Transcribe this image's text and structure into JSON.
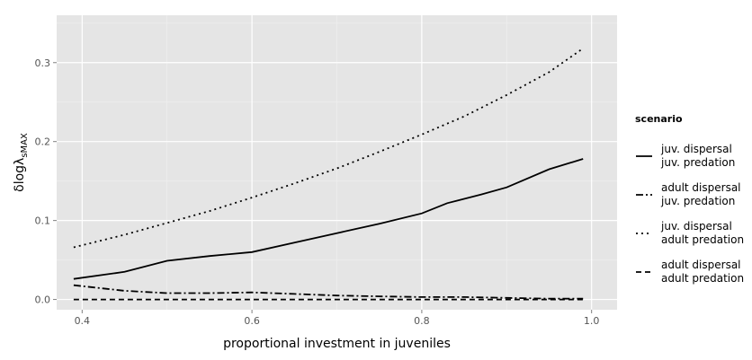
{
  "chart_data": {
    "type": "line",
    "xlabel": "proportional investment in juveniles",
    "ylabel_main": "δlogλ",
    "ylabel_sub": "sMAX",
    "xlim": [
      0.37,
      1.03
    ],
    "ylim": [
      -0.013,
      0.36
    ],
    "x_ticks": [
      0.4,
      0.6,
      0.8,
      1.0
    ],
    "x_tick_labels": [
      "0.4",
      "0.6",
      "0.8",
      "1.0"
    ],
    "y_ticks": [
      0.0,
      0.1,
      0.2,
      0.3
    ],
    "y_tick_labels": [
      "0.0",
      "0.1",
      "0.2",
      "0.3"
    ],
    "grid": true,
    "legend": {
      "title": "scenario",
      "placement": "right"
    },
    "series": [
      {
        "name_line1": "juv. dispersal",
        "name_line2": "juv. predation",
        "dash": "solid",
        "x": [
          0.39,
          0.45,
          0.5,
          0.55,
          0.6,
          0.65,
          0.7,
          0.75,
          0.8,
          0.83,
          0.87,
          0.9,
          0.95,
          0.99
        ],
        "y": [
          0.026,
          0.035,
          0.049,
          0.055,
          0.06,
          0.072,
          0.084,
          0.096,
          0.109,
          0.122,
          0.133,
          0.142,
          0.165,
          0.178
        ]
      },
      {
        "name_line1": "adult dispersal",
        "name_line2": "juv. predation",
        "dash": "dashdot",
        "x": [
          0.39,
          0.45,
          0.5,
          0.55,
          0.6,
          0.65,
          0.7,
          0.75,
          0.8,
          0.85,
          0.9,
          0.95,
          0.99
        ],
        "y": [
          0.018,
          0.011,
          0.008,
          0.008,
          0.009,
          0.007,
          0.005,
          0.004,
          0.003,
          0.003,
          0.002,
          0.001,
          0.001
        ]
      },
      {
        "name_line1": "juv. dispersal",
        "name_line2": "adult predation",
        "dash": "dotted",
        "x": [
          0.39,
          0.45,
          0.5,
          0.55,
          0.6,
          0.65,
          0.7,
          0.75,
          0.8,
          0.85,
          0.9,
          0.95,
          0.99
        ],
        "y": [
          0.066,
          0.082,
          0.097,
          0.112,
          0.129,
          0.147,
          0.166,
          0.187,
          0.209,
          0.232,
          0.259,
          0.288,
          0.318
        ]
      },
      {
        "name_line1": "adult dispersal",
        "name_line2": "adult predation",
        "dash": "dashed",
        "x": [
          0.39,
          0.5,
          0.6,
          0.7,
          0.8,
          0.9,
          0.99
        ],
        "y": [
          0.0,
          0.0,
          0.0,
          0.0,
          0.0,
          0.0,
          0.0
        ]
      }
    ]
  },
  "colors": {
    "panel_bg": "#e5e5e5",
    "grid_major": "#ffffff",
    "grid_minor": "#f0f0f0",
    "line": "#000000",
    "tick_text": "#555555"
  }
}
